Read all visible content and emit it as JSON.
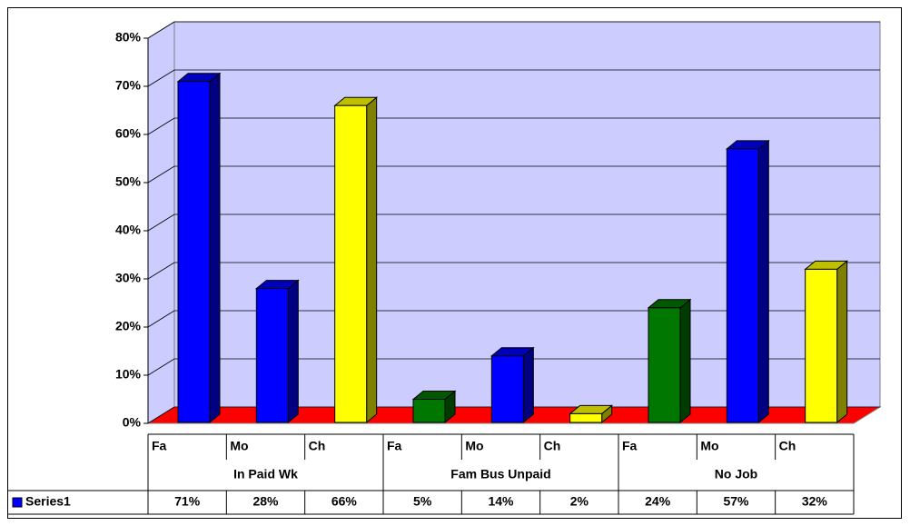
{
  "chart_data": {
    "type": "bar3d",
    "groups": [
      "In Paid Wk",
      "Fam Bus Unpaid",
      "No Job"
    ],
    "categories": [
      "Fa",
      "Mo",
      "Ch",
      "Fa",
      "Mo",
      "Ch",
      "Fa",
      "Mo",
      "Ch"
    ],
    "series": [
      {
        "name": "Series1",
        "color": "#0000ff",
        "values": [
          71,
          28,
          66,
          5,
          14,
          2,
          24,
          57,
          32
        ],
        "value_labels": [
          "71%",
          "28%",
          "66%",
          "5%",
          "14%",
          "2%",
          "24%",
          "57%",
          "32%"
        ],
        "colors": [
          "#0000ff",
          "#0000ff",
          "#ffff00",
          "#007700",
          "#0000ff",
          "#ffff00",
          "#007700",
          "#0000ff",
          "#ffff00"
        ]
      }
    ],
    "ylim": [
      0,
      80
    ],
    "yticks": [
      {
        "value": 0,
        "label": "0%"
      },
      {
        "value": 10,
        "label": "10%"
      },
      {
        "value": 20,
        "label": "20%"
      },
      {
        "value": 30,
        "label": "30%"
      },
      {
        "value": 40,
        "label": "40%"
      },
      {
        "value": 50,
        "label": "50%"
      },
      {
        "value": 60,
        "label": "60%"
      },
      {
        "value": 70,
        "label": "70%"
      },
      {
        "value": 80,
        "label": "80%"
      }
    ],
    "grid": true,
    "wall_color": "#ccccff",
    "floor_color": "#ff0000"
  }
}
